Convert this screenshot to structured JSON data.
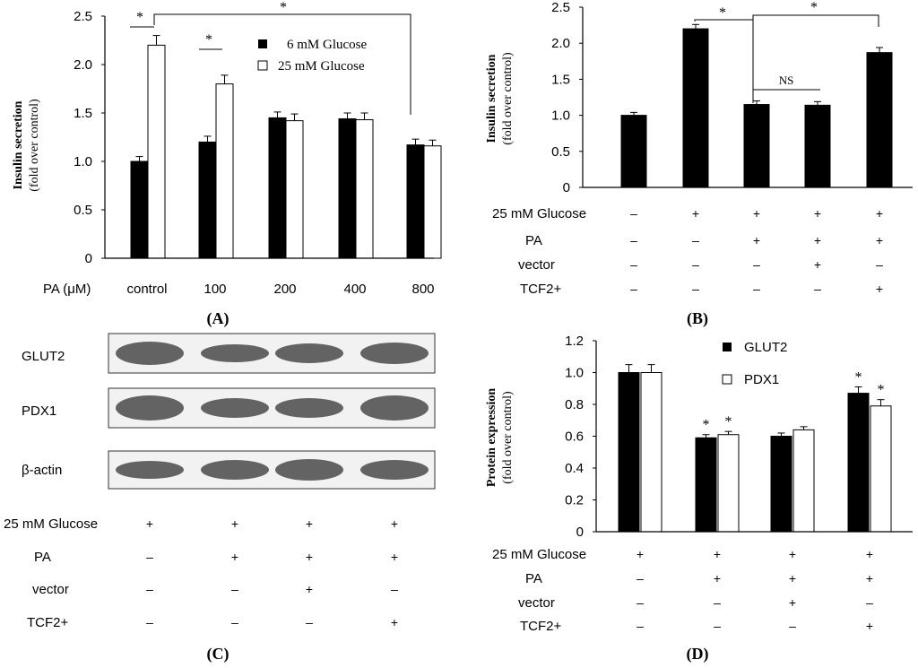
{
  "colors": {
    "black_bar": "#000000",
    "white_bar": "#ffffff",
    "axis": "#000000",
    "band": "#4a4a4a",
    "blot_bg": "#f2f2f2"
  },
  "chart_data": [
    {
      "panel": "A",
      "type": "bar",
      "ylabel_line1": "Insulin secretion",
      "ylabel_line2": "(fold over control)",
      "xaxis_label": "PA (μM)",
      "ylim": [
        0,
        2.5
      ],
      "yticks": [
        "0",
        "0.5",
        "1.0",
        "1.5",
        "2.0",
        "2.5"
      ],
      "categories": [
        "control",
        "100",
        "200",
        "400",
        "800"
      ],
      "series": [
        {
          "name": "6 mM Glucose",
          "values": [
            1.0,
            1.2,
            1.45,
            1.44,
            1.17
          ],
          "errors": [
            0.05,
            0.06,
            0.06,
            0.06,
            0.06
          ]
        },
        {
          "name": "25 mM Glucose",
          "values": [
            2.2,
            1.8,
            1.42,
            1.43,
            1.16
          ],
          "errors": [
            0.1,
            0.09,
            0.07,
            0.07,
            0.06
          ]
        }
      ],
      "legend": [
        "6 mM Glucose",
        "25 mM Glucose"
      ],
      "sig": [
        "*",
        "*",
        "*"
      ],
      "panel_label": "(A)"
    },
    {
      "panel": "B",
      "type": "bar",
      "ylabel_line1": "Insulin secretion",
      "ylabel_line2": "(fold over control)",
      "ylim": [
        0,
        2.5
      ],
      "yticks": [
        "0",
        "0.5",
        "1.0",
        "1.5",
        "2.0",
        "2.5"
      ],
      "values": [
        1.0,
        2.2,
        1.15,
        1.14,
        1.87
      ],
      "errors": [
        0.04,
        0.06,
        0.05,
        0.05,
        0.07
      ],
      "sig": [
        "*",
        "*",
        "NS"
      ],
      "conditions": [
        {
          "label": "25 mM Glucose",
          "marks": [
            "–",
            "+",
            "+",
            "+",
            "+"
          ]
        },
        {
          "label": "PA",
          "marks": [
            "–",
            "–",
            "+",
            "+",
            "+"
          ]
        },
        {
          "label": "vector",
          "marks": [
            "–",
            "–",
            "–",
            "+",
            "–"
          ]
        },
        {
          "label": "TCF2+",
          "marks": [
            "–",
            "–",
            "–",
            "–",
            "+"
          ]
        }
      ],
      "panel_label": "(B)"
    },
    {
      "panel": "D",
      "type": "bar",
      "ylabel_line1": "Protein expression",
      "ylabel_line2": "(fold over control)",
      "ylim": [
        0,
        1.2
      ],
      "yticks": [
        "0",
        "0.2",
        "0.4",
        "0.6",
        "0.8",
        "1.0",
        "1.2"
      ],
      "series": [
        {
          "name": "GLUT2",
          "values": [
            1.0,
            0.59,
            0.6,
            0.87
          ],
          "errors": [
            0.05,
            0.02,
            0.02,
            0.04
          ]
        },
        {
          "name": "PDX1",
          "values": [
            1.0,
            0.61,
            0.64,
            0.79
          ],
          "errors": [
            0.05,
            0.02,
            0.02,
            0.04
          ]
        }
      ],
      "legend": [
        "GLUT2",
        "PDX1"
      ],
      "sig": [
        "*",
        "*",
        "*",
        "*"
      ],
      "conditions": [
        {
          "label": "25 mM Glucose",
          "marks": [
            "+",
            "+",
            "+",
            "+"
          ]
        },
        {
          "label": "PA",
          "marks": [
            "–",
            "+",
            "+",
            "+"
          ]
        },
        {
          "label": "vector",
          "marks": [
            "–",
            "–",
            "+",
            "–"
          ]
        },
        {
          "label": "TCF2+",
          "marks": [
            "–",
            "–",
            "–",
            "+"
          ]
        }
      ],
      "panel_label": "(D)"
    }
  ],
  "blot": {
    "panel": "C",
    "rows": [
      "GLUT2",
      "PDX1",
      "β-actin"
    ],
    "conditions": [
      {
        "label": "25 mM Glucose",
        "marks": [
          "+",
          "+",
          "+",
          "+"
        ]
      },
      {
        "label": "PA",
        "marks": [
          "–",
          "+",
          "+",
          "+"
        ]
      },
      {
        "label": "vector",
        "marks": [
          "–",
          "–",
          "+",
          "–"
        ]
      },
      {
        "label": "TCF2+",
        "marks": [
          "–",
          "–",
          "–",
          "+"
        ]
      }
    ],
    "panel_label": "(C)"
  }
}
